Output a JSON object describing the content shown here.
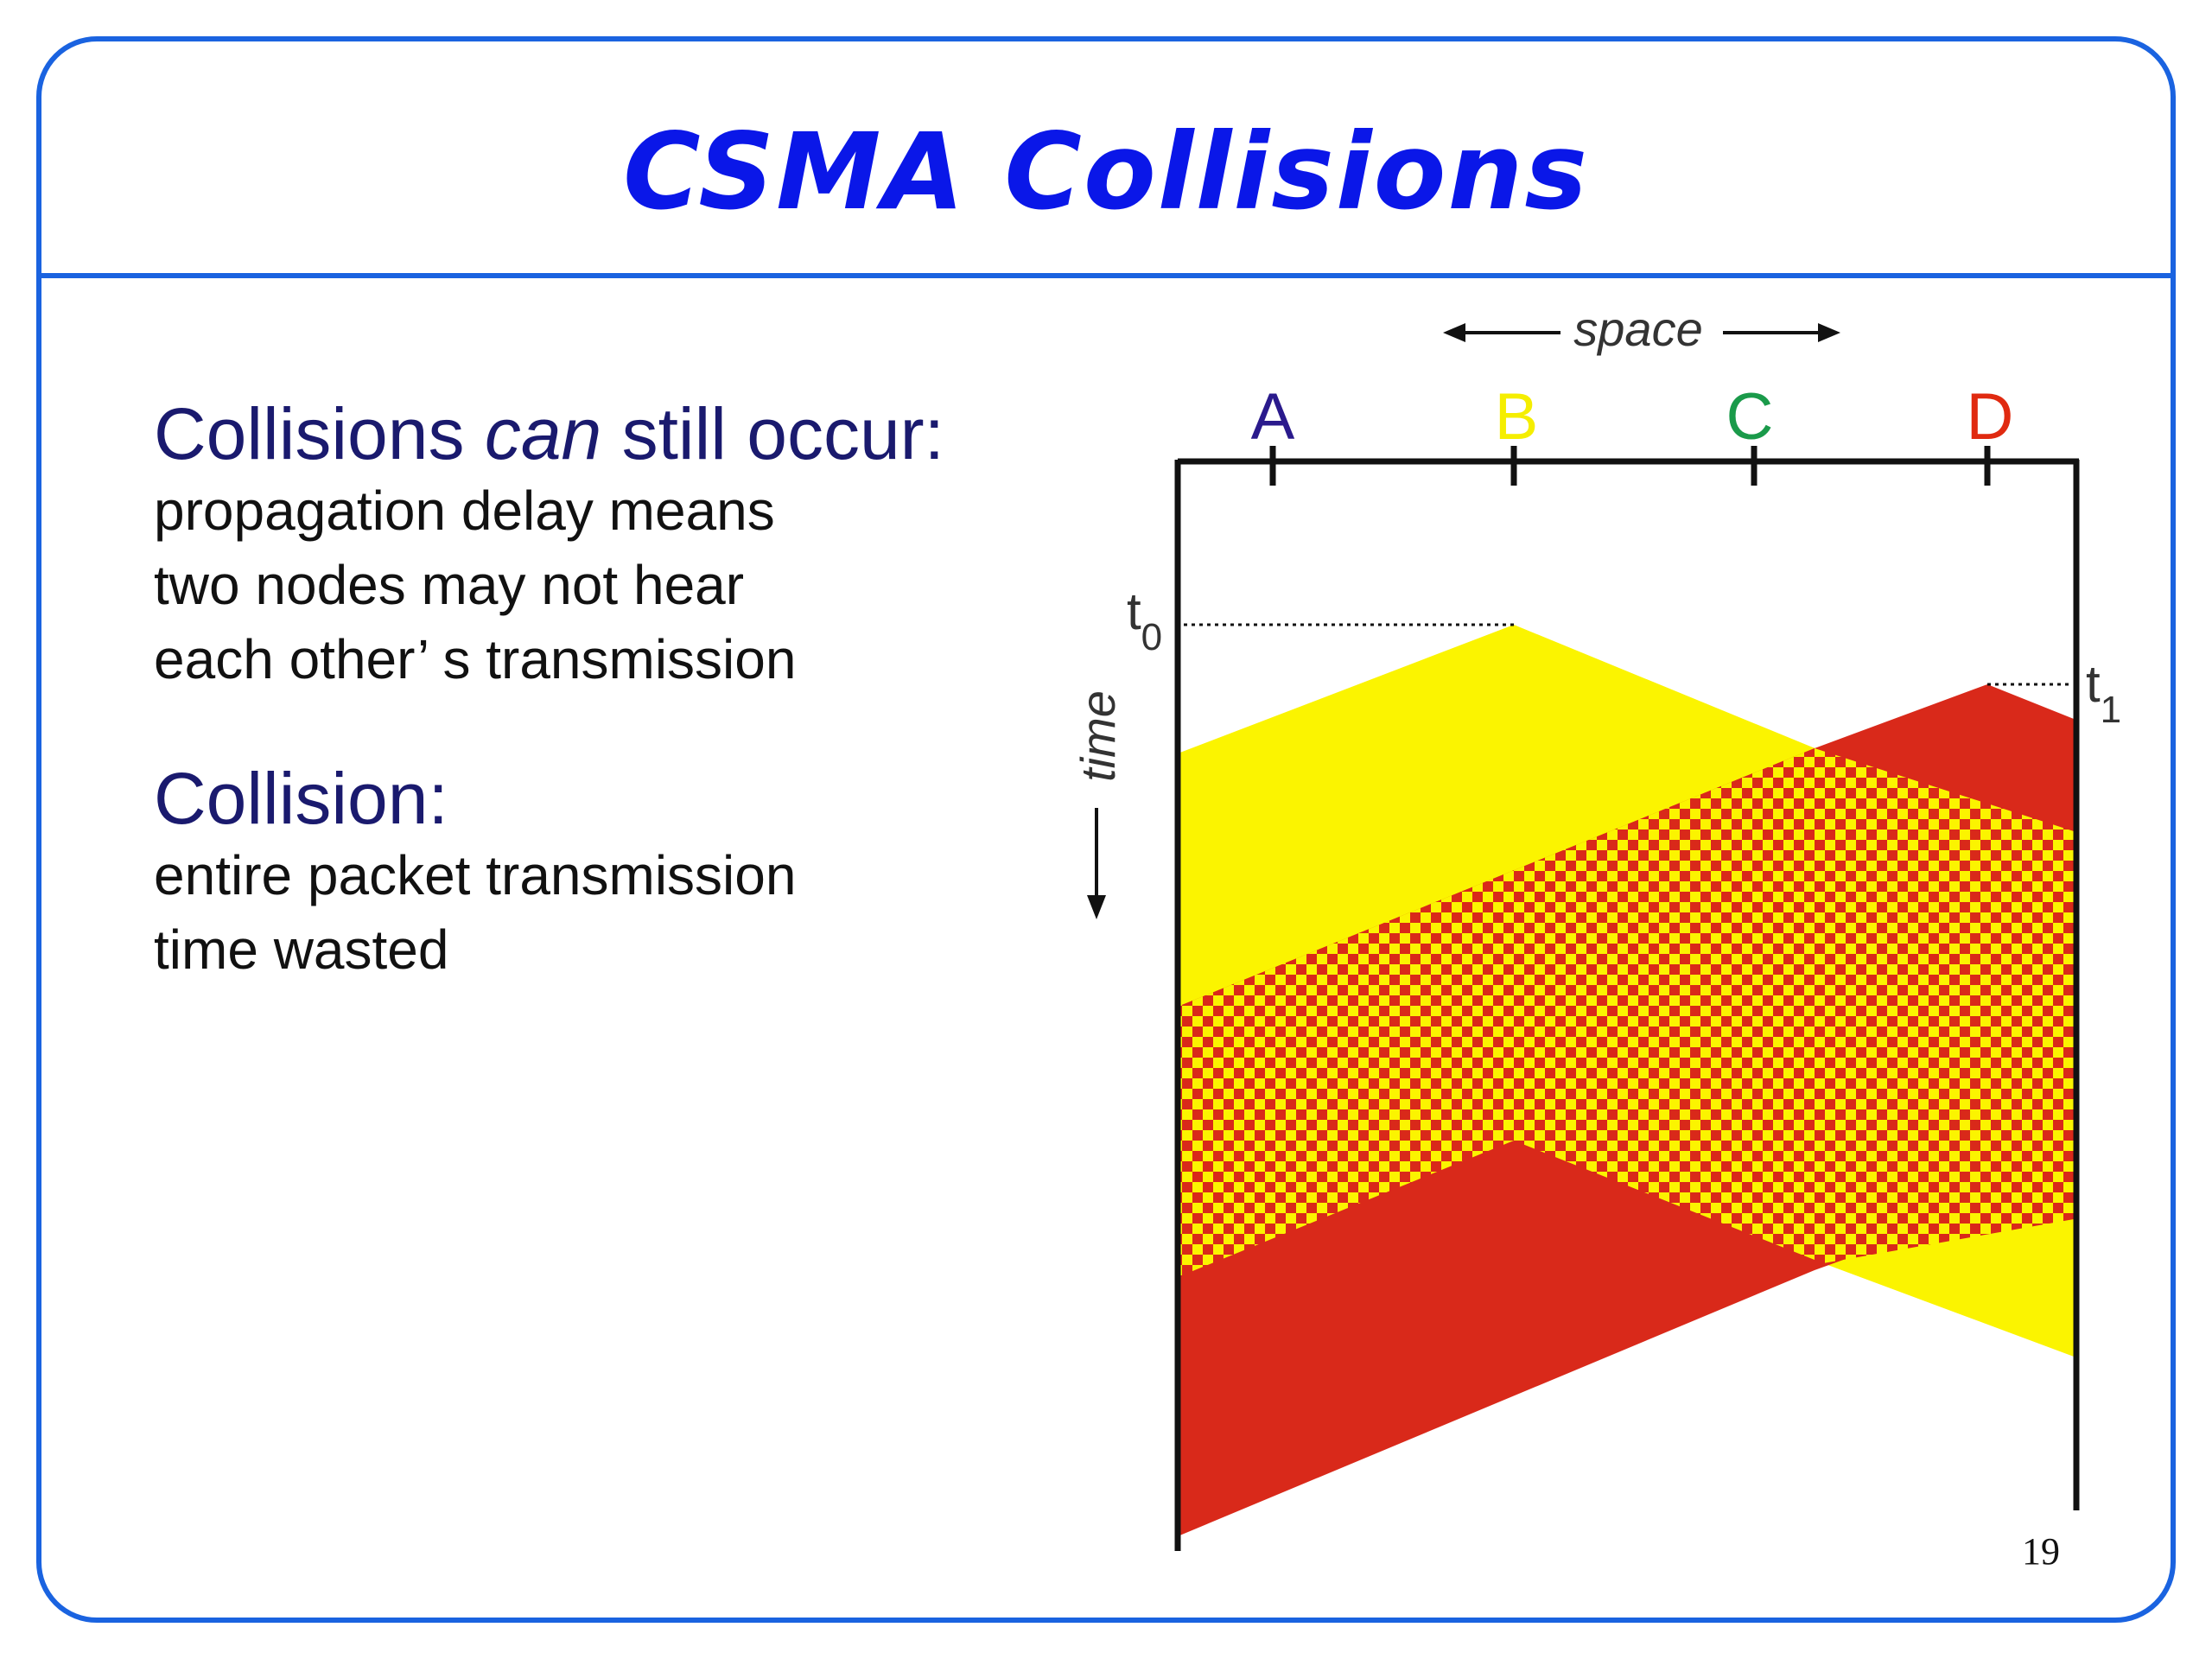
{
  "slide": {
    "title": "CSMA  Collisions",
    "page_number": "19"
  },
  "content": {
    "block1": {
      "heading_parts": [
        "Collisions ",
        "can",
        " still occur:"
      ],
      "lines": [
        "propagation delay means",
        "two nodes may not hear",
        "each other’ s transmission"
      ]
    },
    "block2": {
      "heading": "Collision:",
      "lines": [
        "entire packet transmission",
        "time wasted"
      ]
    }
  },
  "diagram": {
    "space_label": "space",
    "time_label": "time",
    "nodes": [
      {
        "label": "A",
        "color": "#2a1a8c"
      },
      {
        "label": "B",
        "color": "#f5ee00"
      },
      {
        "label": "C",
        "color": "#1a9a4a"
      },
      {
        "label": "D",
        "color": "#e02a10"
      }
    ],
    "t0": {
      "base": "t",
      "sub": "0"
    },
    "t1": {
      "base": "t",
      "sub": "1"
    },
    "colors": {
      "yellow": "#fbf400",
      "red": "#d9291a"
    }
  }
}
